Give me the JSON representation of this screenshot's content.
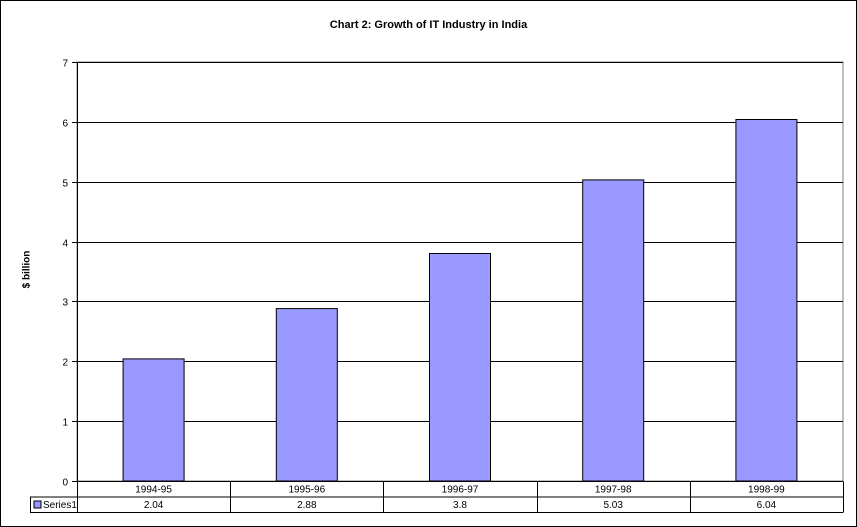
{
  "chart_data": {
    "type": "bar",
    "title": "Chart 2: Growth of IT Industry in India",
    "xlabel": "",
    "ylabel": "$ billion",
    "categories": [
      "1994-95",
      "1995-96",
      "1996-97",
      "1997-98",
      "1998-99"
    ],
    "series": [
      {
        "name": "Series1",
        "values": [
          2.04,
          2.88,
          3.8,
          5.03,
          6.04
        ],
        "color": "#9999ff"
      }
    ],
    "ylim": [
      0,
      7
    ],
    "yticks": [
      "0",
      "1",
      "2",
      "3",
      "4",
      "5",
      "6",
      "7"
    ],
    "data_table": {
      "row_label": "Series1",
      "values": [
        "2.04",
        "2.88",
        "3.8",
        "5.03",
        "6.04"
      ]
    },
    "grid": true,
    "legend": "data-table"
  }
}
